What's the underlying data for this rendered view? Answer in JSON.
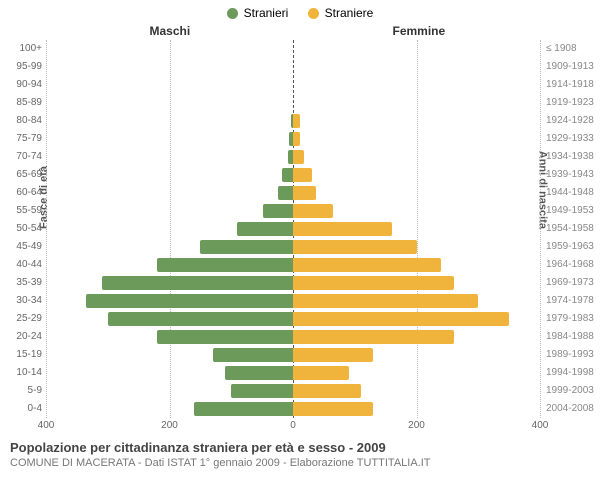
{
  "legend": {
    "male": {
      "label": "Stranieri",
      "color": "#6b9a5b"
    },
    "female": {
      "label": "Straniere",
      "color": "#f0b43c"
    }
  },
  "headers": {
    "male": "Maschi",
    "female": "Femmine"
  },
  "axis_titles": {
    "left": "Fasce di età",
    "right": "Anni di nascita"
  },
  "chart": {
    "type": "pyramid",
    "max_value": 400,
    "x_ticks": [
      400,
      200,
      0,
      200,
      400
    ],
    "grid_positions": [
      -400,
      -200,
      0,
      200,
      400
    ],
    "background_color": "#ffffff",
    "grid_color": "#bbbbbb",
    "bar_colors": {
      "male": "#6b9a5b",
      "female": "#f0b43c"
    },
    "categories": [
      {
        "age": "100+",
        "year": "≤ 1908",
        "male": 0,
        "female": 0
      },
      {
        "age": "95-99",
        "year": "1909-1913",
        "male": 0,
        "female": 0
      },
      {
        "age": "90-94",
        "year": "1914-1918",
        "male": 0,
        "female": 0
      },
      {
        "age": "85-89",
        "year": "1919-1923",
        "male": 0,
        "female": 0
      },
      {
        "age": "80-84",
        "year": "1924-1928",
        "male": 4,
        "female": 12
      },
      {
        "age": "75-79",
        "year": "1929-1933",
        "male": 6,
        "female": 12
      },
      {
        "age": "70-74",
        "year": "1934-1938",
        "male": 8,
        "female": 18
      },
      {
        "age": "65-69",
        "year": "1939-1943",
        "male": 18,
        "female": 30
      },
      {
        "age": "60-64",
        "year": "1944-1948",
        "male": 24,
        "female": 38
      },
      {
        "age": "55-59",
        "year": "1949-1953",
        "male": 48,
        "female": 64
      },
      {
        "age": "50-54",
        "year": "1954-1958",
        "male": 90,
        "female": 160
      },
      {
        "age": "45-49",
        "year": "1959-1963",
        "male": 150,
        "female": 200
      },
      {
        "age": "40-44",
        "year": "1964-1968",
        "male": 220,
        "female": 240
      },
      {
        "age": "35-39",
        "year": "1969-1973",
        "male": 310,
        "female": 260
      },
      {
        "age": "30-34",
        "year": "1974-1978",
        "male": 335,
        "female": 300
      },
      {
        "age": "25-29",
        "year": "1979-1983",
        "male": 300,
        "female": 350
      },
      {
        "age": "20-24",
        "year": "1984-1988",
        "male": 220,
        "female": 260
      },
      {
        "age": "15-19",
        "year": "1989-1993",
        "male": 130,
        "female": 130
      },
      {
        "age": "10-14",
        "year": "1994-1998",
        "male": 110,
        "female": 90
      },
      {
        "age": "5-9",
        "year": "1999-2003",
        "male": 100,
        "female": 110
      },
      {
        "age": "0-4",
        "year": "2004-2008",
        "male": 160,
        "female": 130
      }
    ]
  },
  "footer": {
    "title": "Popolazione per cittadinanza straniera per età e sesso - 2009",
    "subtitle": "COMUNE DI MACERATA - Dati ISTAT 1° gennaio 2009 - Elaborazione TUTTITALIA.IT"
  }
}
